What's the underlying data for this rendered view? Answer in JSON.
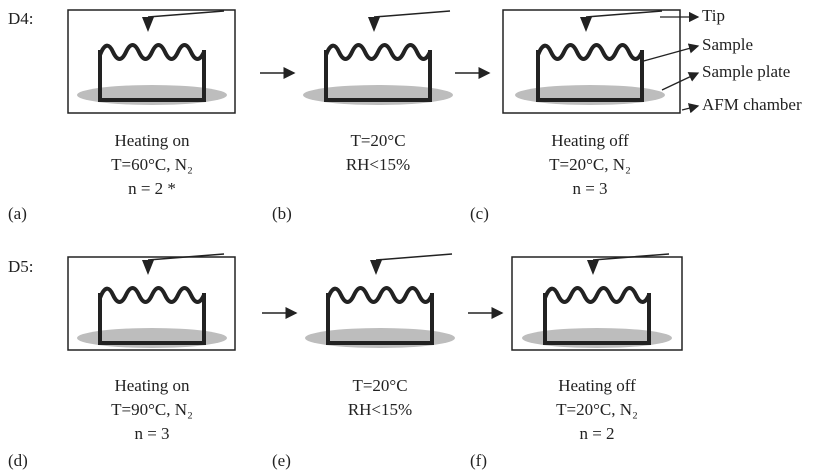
{
  "rows": [
    {
      "label": "D4:",
      "panels": [
        {
          "id": "(a)",
          "lines": [
            "Heating on",
            "T=60°C, N₂",
            "n = 2 *"
          ],
          "framed": true
        },
        {
          "id": "(b)",
          "lines": [
            "T=20°C",
            "RH<15%"
          ],
          "framed": false
        },
        {
          "id": "(c)",
          "lines": [
            "Heating off",
            "T=20°C, N₂",
            "n = 3"
          ],
          "framed": true
        }
      ]
    },
    {
      "label": "D5:",
      "panels": [
        {
          "id": "(d)",
          "lines": [
            "Heating on",
            "T=90°C, N₂",
            "n = 3"
          ],
          "framed": true
        },
        {
          "id": "(e)",
          "lines": [
            "T=20°C",
            "RH<15%"
          ],
          "framed": false
        },
        {
          "id": "(f)",
          "lines": [
            "Heating off",
            "T=20°C, N₂",
            "n = 2"
          ],
          "framed": true
        }
      ]
    }
  ],
  "legend": [
    "Tip",
    "Sample",
    "Sample plate",
    "AFM chamber"
  ]
}
